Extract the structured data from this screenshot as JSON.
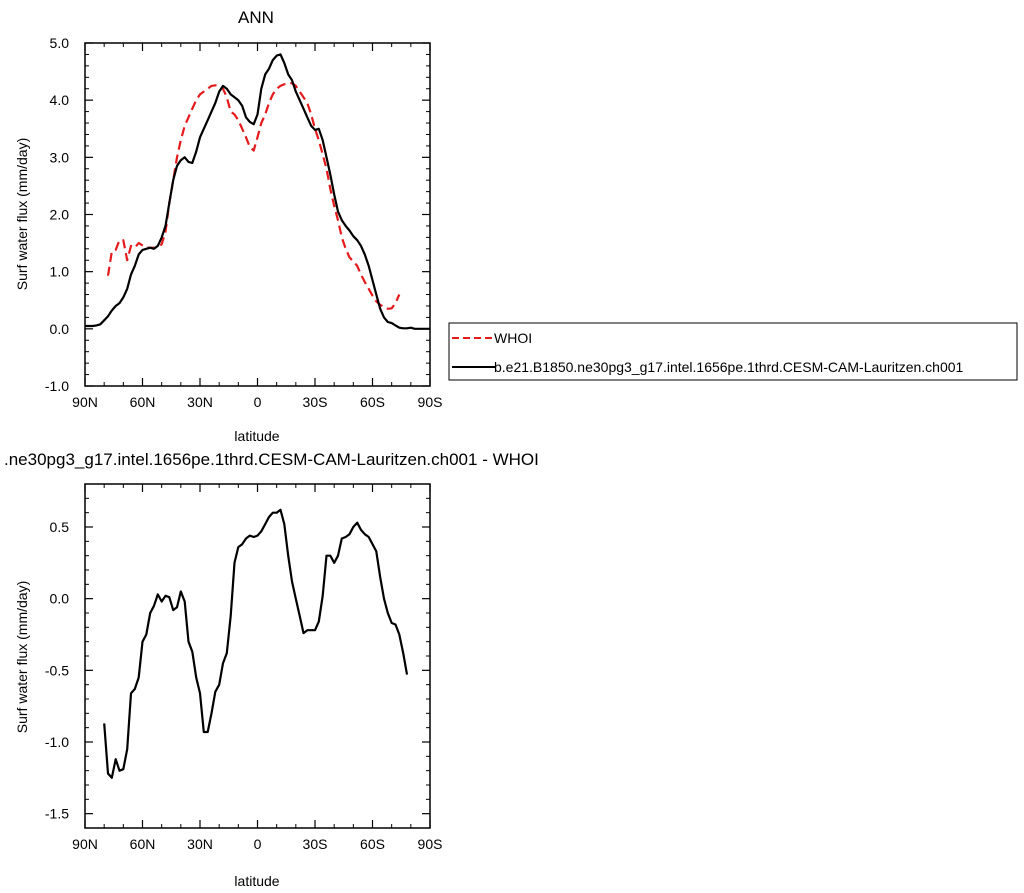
{
  "chart_data": [
    {
      "type": "line",
      "title": "ANN",
      "xlabel": "latitude",
      "ylabel": "Surf water flux (mm/day)",
      "xlim": [
        90,
        -90
      ],
      "ylim": [
        -1.0,
        5.0
      ],
      "x_ticks": [
        90,
        60,
        30,
        0,
        -30,
        -60,
        -90
      ],
      "x_tick_labels": [
        "90N",
        "60N",
        "30N",
        "0",
        "30S",
        "60S",
        "90S"
      ],
      "y_ticks": [
        -1.0,
        0.0,
        1.0,
        2.0,
        3.0,
        4.0,
        5.0
      ],
      "y_tick_labels": [
        "-1.0",
        "0.0",
        "1.0",
        "2.0",
        "3.0",
        "4.0",
        "5.0"
      ],
      "legend_position": "right",
      "grid": false,
      "series": [
        {
          "name": "WHOI",
          "color": "#e41a1c",
          "style": "dashed",
          "points": [
            [
              78,
              0.93
            ],
            [
              76,
              1.35
            ],
            [
              74,
              1.38
            ],
            [
              72,
              1.55
            ],
            [
              70,
              1.55
            ],
            [
              68,
              1.2
            ],
            [
              66,
              1.45
            ],
            [
              64,
              1.42
            ],
            [
              62,
              1.5
            ],
            [
              60,
              1.46
            ],
            [
              58,
              1.42
            ],
            [
              56,
              1.42
            ],
            [
              54,
              1.42
            ],
            [
              52,
              1.42
            ],
            [
              50,
              1.48
            ],
            [
              48,
              1.7
            ],
            [
              46,
              2.2
            ],
            [
              44,
              2.6
            ],
            [
              42,
              3.0
            ],
            [
              40,
              3.3
            ],
            [
              38,
              3.55
            ],
            [
              36,
              3.7
            ],
            [
              34,
              3.85
            ],
            [
              32,
              4.0
            ],
            [
              30,
              4.1
            ],
            [
              28,
              4.15
            ],
            [
              26,
              4.2
            ],
            [
              24,
              4.25
            ],
            [
              22,
              4.26
            ],
            [
              20,
              4.25
            ],
            [
              18,
              4.2
            ],
            [
              16,
              4.05
            ],
            [
              14,
              3.8
            ],
            [
              12,
              3.75
            ],
            [
              10,
              3.65
            ],
            [
              8,
              3.5
            ],
            [
              6,
              3.35
            ],
            [
              4,
              3.18
            ],
            [
              2,
              3.12
            ],
            [
              0,
              3.35
            ],
            [
              -2,
              3.6
            ],
            [
              -4,
              3.75
            ],
            [
              -6,
              3.95
            ],
            [
              -8,
              4.1
            ],
            [
              -10,
              4.2
            ],
            [
              -12,
              4.25
            ],
            [
              -14,
              4.28
            ],
            [
              -16,
              4.28
            ],
            [
              -18,
              4.3
            ],
            [
              -20,
              4.25
            ],
            [
              -22,
              4.15
            ],
            [
              -24,
              4.05
            ],
            [
              -26,
              3.95
            ],
            [
              -28,
              3.75
            ],
            [
              -30,
              3.5
            ],
            [
              -32,
              3.3
            ],
            [
              -34,
              3.05
            ],
            [
              -36,
              2.8
            ],
            [
              -38,
              2.45
            ],
            [
              -40,
              2.15
            ],
            [
              -42,
              1.9
            ],
            [
              -44,
              1.6
            ],
            [
              -46,
              1.4
            ],
            [
              -48,
              1.25
            ],
            [
              -50,
              1.18
            ],
            [
              -52,
              1.1
            ],
            [
              -54,
              0.95
            ],
            [
              -56,
              0.82
            ],
            [
              -58,
              0.7
            ],
            [
              -60,
              0.58
            ],
            [
              -62,
              0.48
            ],
            [
              -64,
              0.42
            ],
            [
              -66,
              0.38
            ],
            [
              -68,
              0.35
            ],
            [
              -70,
              0.36
            ],
            [
              -72,
              0.45
            ],
            [
              -74,
              0.6
            ]
          ]
        },
        {
          "name": "b.e21.B1850.ne30pg3_g17.intel.1656pe.1thrd.CESM-CAM-Lauritzen.ch001",
          "color": "#000000",
          "style": "solid",
          "points": [
            [
              90,
              0.05
            ],
            [
              88,
              0.05
            ],
            [
              86,
              0.05
            ],
            [
              84,
              0.06
            ],
            [
              82,
              0.08
            ],
            [
              80,
              0.15
            ],
            [
              78,
              0.22
            ],
            [
              76,
              0.32
            ],
            [
              74,
              0.4
            ],
            [
              72,
              0.45
            ],
            [
              70,
              0.55
            ],
            [
              68,
              0.7
            ],
            [
              66,
              0.95
            ],
            [
              64,
              1.1
            ],
            [
              62,
              1.3
            ],
            [
              60,
              1.38
            ],
            [
              58,
              1.4
            ],
            [
              56,
              1.42
            ],
            [
              54,
              1.4
            ],
            [
              52,
              1.45
            ],
            [
              50,
              1.6
            ],
            [
              48,
              1.8
            ],
            [
              46,
              2.2
            ],
            [
              44,
              2.6
            ],
            [
              42,
              2.85
            ],
            [
              40,
              2.95
            ],
            [
              38,
              3.0
            ],
            [
              36,
              2.92
            ],
            [
              34,
              2.9
            ],
            [
              32,
              3.1
            ],
            [
              30,
              3.35
            ],
            [
              28,
              3.5
            ],
            [
              26,
              3.65
            ],
            [
              24,
              3.8
            ],
            [
              22,
              3.95
            ],
            [
              20,
              4.15
            ],
            [
              18,
              4.25
            ],
            [
              16,
              4.2
            ],
            [
              14,
              4.1
            ],
            [
              12,
              4.05
            ],
            [
              10,
              4.0
            ],
            [
              8,
              3.9
            ],
            [
              6,
              3.7
            ],
            [
              4,
              3.62
            ],
            [
              2,
              3.58
            ],
            [
              0,
              3.75
            ],
            [
              -2,
              4.2
            ],
            [
              -4,
              4.45
            ],
            [
              -6,
              4.55
            ],
            [
              -8,
              4.7
            ],
            [
              -10,
              4.78
            ],
            [
              -12,
              4.8
            ],
            [
              -14,
              4.65
            ],
            [
              -16,
              4.45
            ],
            [
              -18,
              4.35
            ],
            [
              -20,
              4.15
            ],
            [
              -22,
              4.0
            ],
            [
              -24,
              3.85
            ],
            [
              -26,
              3.7
            ],
            [
              -28,
              3.55
            ],
            [
              -30,
              3.48
            ],
            [
              -32,
              3.5
            ],
            [
              -34,
              3.3
            ],
            [
              -36,
              3.0
            ],
            [
              -38,
              2.7
            ],
            [
              -40,
              2.35
            ],
            [
              -42,
              2.05
            ],
            [
              -44,
              1.9
            ],
            [
              -46,
              1.8
            ],
            [
              -48,
              1.72
            ],
            [
              -50,
              1.62
            ],
            [
              -52,
              1.55
            ],
            [
              -54,
              1.45
            ],
            [
              -56,
              1.3
            ],
            [
              -58,
              1.1
            ],
            [
              -60,
              0.85
            ],
            [
              -62,
              0.6
            ],
            [
              -64,
              0.35
            ],
            [
              -66,
              0.2
            ],
            [
              -68,
              0.12
            ],
            [
              -70,
              0.1
            ],
            [
              -72,
              0.06
            ],
            [
              -74,
              0.02
            ],
            [
              -76,
              0.01
            ],
            [
              -78,
              0.01
            ],
            [
              -80,
              0.02
            ],
            [
              -82,
              0.0
            ],
            [
              -84,
              0.0
            ],
            [
              -86,
              0.0
            ],
            [
              -88,
              0.0
            ],
            [
              -90,
              0.0
            ]
          ]
        }
      ]
    },
    {
      "type": "line",
      "title": ".ne30pg3_g17.intel.1656pe.1thrd.CESM-CAM-Lauritzen.ch001 - WHOI",
      "xlabel": "latitude",
      "ylabel": "Surf water flux (mm/day)",
      "xlim": [
        90,
        -90
      ],
      "ylim": [
        -1.6,
        0.8
      ],
      "x_ticks": [
        90,
        60,
        30,
        0,
        -30,
        -60,
        -90
      ],
      "x_tick_labels": [
        "90N",
        "60N",
        "30N",
        "0",
        "30S",
        "60S",
        "90S"
      ],
      "y_ticks": [
        -1.5,
        -1.0,
        -0.5,
        0.0,
        0.5
      ],
      "y_tick_labels": [
        "-1.5",
        "-1.0",
        "-0.5",
        "0.0",
        "0.5"
      ],
      "grid": false,
      "series": [
        {
          "color": "#000000",
          "style": "solid",
          "points": [
            [
              80,
              -0.87
            ],
            [
              78,
              -1.22
            ],
            [
              76,
              -1.25
            ],
            [
              74,
              -1.12
            ],
            [
              72,
              -1.2
            ],
            [
              70,
              -1.19
            ],
            [
              68,
              -1.05
            ],
            [
              66,
              -0.66
            ],
            [
              64,
              -0.63
            ],
            [
              62,
              -0.55
            ],
            [
              60,
              -0.3
            ],
            [
              58,
              -0.25
            ],
            [
              56,
              -0.1
            ],
            [
              54,
              -0.05
            ],
            [
              52,
              0.03
            ],
            [
              50,
              -0.02
            ],
            [
              48,
              0.02
            ],
            [
              46,
              0.01
            ],
            [
              44,
              -0.08
            ],
            [
              42,
              -0.06
            ],
            [
              40,
              0.05
            ],
            [
              38,
              -0.02
            ],
            [
              36,
              -0.3
            ],
            [
              34,
              -0.37
            ],
            [
              32,
              -0.55
            ],
            [
              30,
              -0.66
            ],
            [
              28,
              -0.93
            ],
            [
              26,
              -0.93
            ],
            [
              24,
              -0.8
            ],
            [
              22,
              -0.65
            ],
            [
              20,
              -0.6
            ],
            [
              18,
              -0.45
            ],
            [
              16,
              -0.38
            ],
            [
              14,
              -0.12
            ],
            [
              12,
              0.25
            ],
            [
              10,
              0.36
            ],
            [
              8,
              0.38
            ],
            [
              6,
              0.42
            ],
            [
              4,
              0.44
            ],
            [
              2,
              0.43
            ],
            [
              0,
              0.44
            ],
            [
              -2,
              0.47
            ],
            [
              -4,
              0.52
            ],
            [
              -6,
              0.57
            ],
            [
              -8,
              0.6
            ],
            [
              -10,
              0.6
            ],
            [
              -12,
              0.62
            ],
            [
              -14,
              0.52
            ],
            [
              -16,
              0.3
            ],
            [
              -18,
              0.12
            ],
            [
              -20,
              0.0
            ],
            [
              -22,
              -0.12
            ],
            [
              -24,
              -0.24
            ],
            [
              -26,
              -0.22
            ],
            [
              -28,
              -0.22
            ],
            [
              -30,
              -0.22
            ],
            [
              -32,
              -0.16
            ],
            [
              -34,
              0.02
            ],
            [
              -36,
              0.3
            ],
            [
              -38,
              0.3
            ],
            [
              -40,
              0.25
            ],
            [
              -42,
              0.3
            ],
            [
              -44,
              0.42
            ],
            [
              -46,
              0.43
            ],
            [
              -48,
              0.45
            ],
            [
              -50,
              0.5
            ],
            [
              -52,
              0.53
            ],
            [
              -54,
              0.48
            ],
            [
              -56,
              0.45
            ],
            [
              -58,
              0.43
            ],
            [
              -60,
              0.38
            ],
            [
              -62,
              0.33
            ],
            [
              -64,
              0.15
            ],
            [
              -66,
              0.0
            ],
            [
              -68,
              -0.1
            ],
            [
              -70,
              -0.17
            ],
            [
              -72,
              -0.18
            ],
            [
              -74,
              -0.25
            ],
            [
              -76,
              -0.38
            ],
            [
              -78,
              -0.53
            ]
          ]
        }
      ]
    }
  ]
}
